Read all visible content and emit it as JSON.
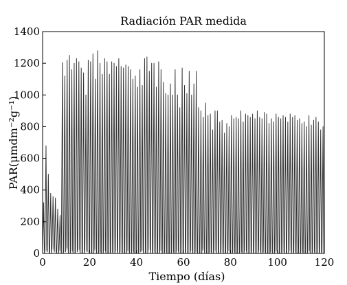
{
  "chart_data": {
    "type": "line",
    "title": "Radiación PAR medida",
    "xlabel": "Tiempo (días)",
    "ylabel": "PAR(μmdm⁻²g⁻¹)",
    "xlim": [
      0,
      120
    ],
    "ylim": [
      0,
      1400
    ],
    "xticks": [
      0,
      20,
      40,
      60,
      80,
      100,
      120
    ],
    "yticks": [
      0,
      200,
      400,
      600,
      800,
      1000,
      1200,
      1400
    ],
    "grid": false,
    "legend": "none",
    "series": [
      {
        "color": "#333333",
        "daily_peaks": [
          320,
          680,
          500,
          380,
          360,
          350,
          280,
          240,
          1205,
          1120,
          1220,
          1250,
          1160,
          1200,
          1230,
          1210,
          1170,
          1140,
          1000,
          1220,
          1210,
          1260,
          1100,
          1280,
          1200,
          1130,
          1230,
          1210,
          1130,
          1210,
          1200,
          1180,
          1230,
          1180,
          1170,
          1190,
          1180,
          1160,
          1100,
          1120,
          1050,
          1160,
          1060,
          1230,
          1240,
          1150,
          1200,
          1200,
          1050,
          1210,
          1160,
          1080,
          1010,
          1000,
          1070,
          1000,
          1160,
          1000,
          920,
          1170,
          1060,
          1010,
          1150,
          1000,
          1070,
          1150,
          920,
          900,
          860,
          950,
          870,
          880,
          780,
          900,
          900,
          830,
          840,
          760,
          820,
          800,
          870,
          850,
          860,
          850,
          900,
          830,
          880,
          870,
          860,
          880,
          850,
          900,
          860,
          850,
          890,
          880,
          820,
          850,
          830,
          880,
          860,
          850,
          870,
          860,
          830,
          880,
          860,
          870,
          840,
          850,
          820,
          830,
          800,
          870,
          810,
          840,
          860,
          830,
          780,
          800
        ],
        "daily_lows": [
          0,
          20,
          10,
          0,
          30,
          10,
          0,
          20,
          0,
          10,
          40,
          0,
          20,
          0,
          10,
          30,
          0,
          0,
          20,
          10,
          0,
          0,
          30,
          0,
          10,
          0,
          20,
          0,
          0,
          10,
          0,
          20,
          0,
          10,
          0,
          0,
          20,
          0,
          10,
          0,
          0,
          10,
          20,
          0,
          0,
          30,
          0,
          10,
          0,
          0,
          20,
          0,
          10,
          0,
          0,
          10,
          0,
          20,
          0,
          0,
          10,
          0,
          0,
          20,
          0,
          10,
          0,
          0,
          30,
          0,
          0,
          10,
          0,
          20,
          0,
          0,
          10,
          0,
          0,
          20,
          0,
          10,
          0,
          0,
          10,
          0,
          20,
          0,
          0,
          10,
          0,
          0,
          20,
          0,
          10,
          0,
          0,
          10,
          0,
          20,
          0,
          0,
          10,
          0,
          0,
          20,
          0,
          10,
          0,
          0,
          10,
          0,
          0,
          20,
          0,
          10,
          0,
          0,
          10,
          0
        ]
      }
    ]
  }
}
